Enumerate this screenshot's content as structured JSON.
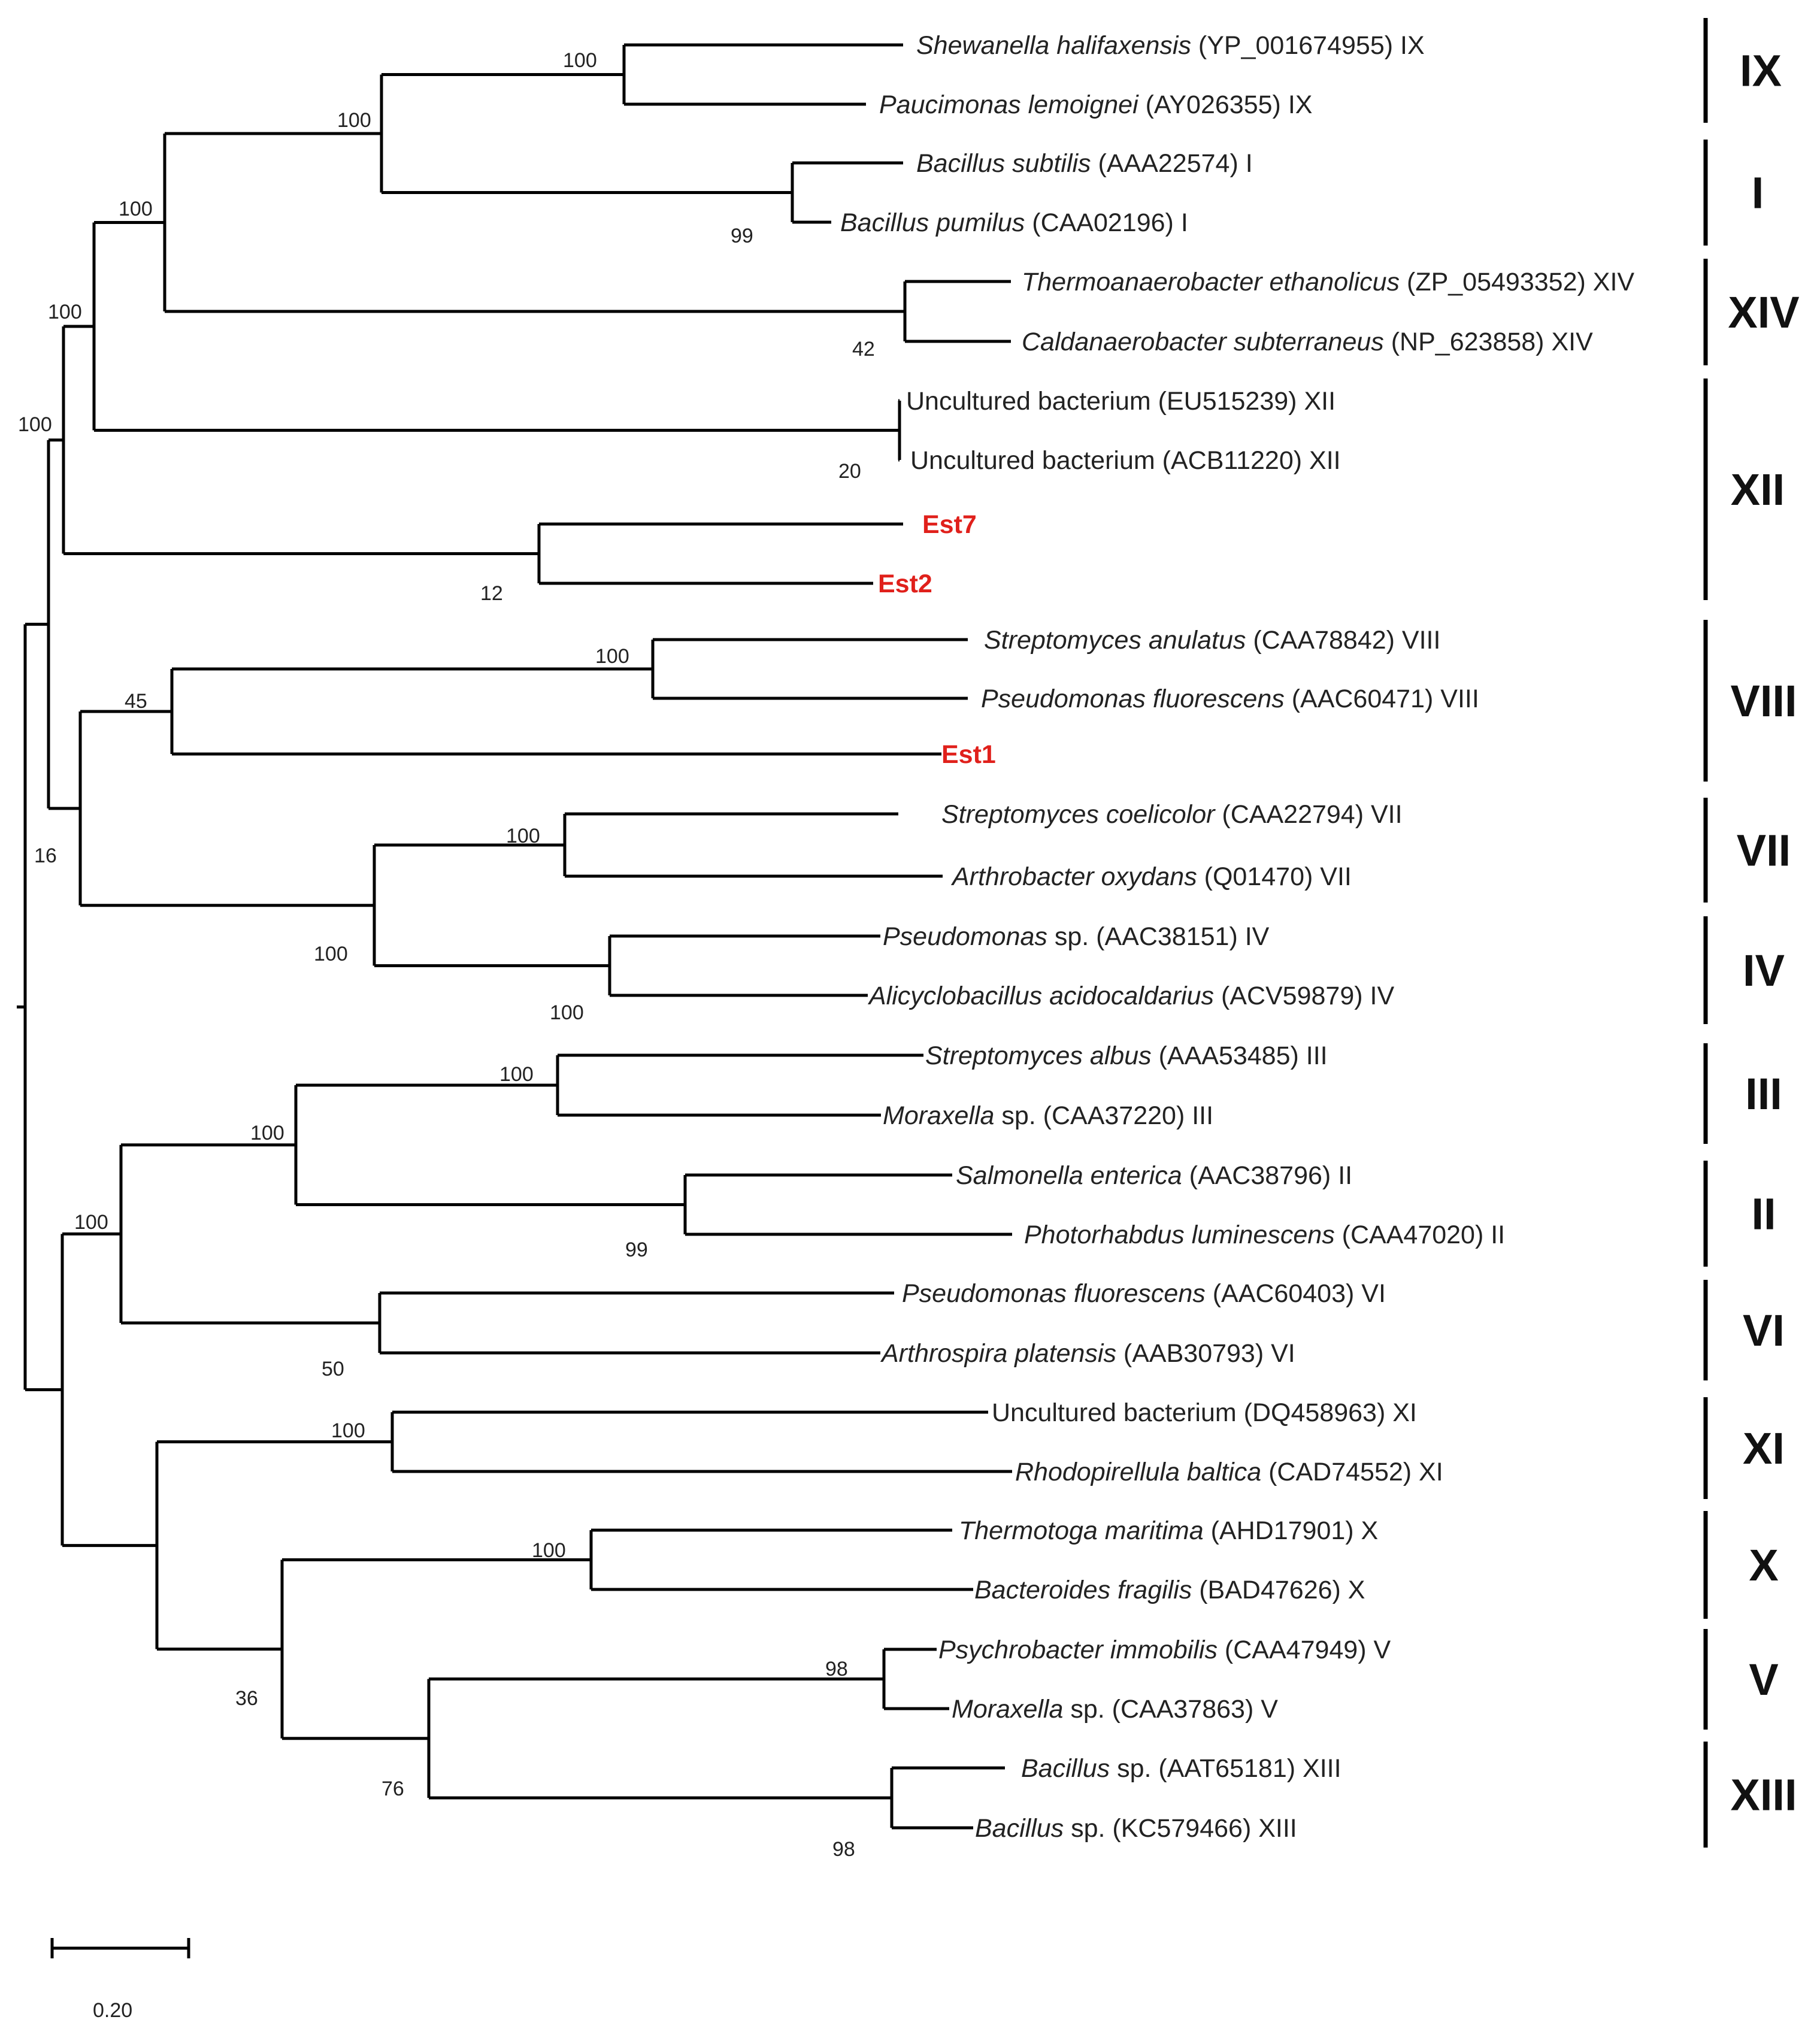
{
  "leaves": [
    {
      "genus": "Shewanella halifaxensis",
      "rest": " (YP_001674955) IX",
      "red": false
    },
    {
      "genus": "Paucimonas lemoignei",
      "rest": " (AY026355) IX",
      "red": false
    },
    {
      "genus": "Bacillus subtilis",
      "rest": " (AAA22574) I",
      "red": false
    },
    {
      "genus": "Bacillus pumilus",
      "rest": " (CAA02196) I",
      "red": false
    },
    {
      "genus": "Thermoanaerobacter ethanolicus",
      "rest": " (ZP_05493352) XIV",
      "red": false
    },
    {
      "genus": "Caldanaerobacter subterraneus",
      "rest": " (NP_623858) XIV",
      "red": false
    },
    {
      "genus": "",
      "rest": "Uncultured bacterium (EU515239) XII",
      "red": false
    },
    {
      "genus": "",
      "rest": "Uncultured bacterium (ACB11220) XII",
      "red": false
    },
    {
      "genus": "",
      "rest": "Est7",
      "red": true
    },
    {
      "genus": "",
      "rest": "Est2",
      "red": true
    },
    {
      "genus": "Streptomyces anulatus",
      "rest": " (CAA78842) VIII",
      "red": false
    },
    {
      "genus": "Pseudomonas fluorescens",
      "rest": " (AAC60471) VIII",
      "red": false
    },
    {
      "genus": "",
      "rest": "Est1",
      "red": true
    },
    {
      "genus": "Streptomyces coelicolor",
      "rest": " (CAA22794) VII",
      "red": false
    },
    {
      "genus": "Arthrobacter oxydans",
      "rest": " (Q01470) VII",
      "red": false
    },
    {
      "genus": "Pseudomonas",
      "rest": " sp. (AAC38151) IV",
      "red": false
    },
    {
      "genus": "Alicyclobacillus acidocaldarius",
      "rest": " (ACV59879) IV",
      "red": false
    },
    {
      "genus": "Streptomyces albus",
      "rest": " (AAA53485) III",
      "red": false
    },
    {
      "genus": "Moraxella",
      "rest": " sp. (CAA37220) III",
      "red": false
    },
    {
      "genus": "Salmonella enterica",
      "rest": " (AAC38796) II",
      "red": false
    },
    {
      "genus": "Photorhabdus luminescens",
      "rest": " (CAA47020) II",
      "red": false
    },
    {
      "genus": "Pseudomonas fluorescens",
      "rest": " (AAC60403) VI",
      "red": false
    },
    {
      "genus": "Arthrospira platensis",
      "rest": " (AAB30793) VI",
      "red": false
    },
    {
      "genus": "",
      "rest": "Uncultured bacterium (DQ458963) XI",
      "red": false
    },
    {
      "genus": "Rhodopirellula baltica",
      "rest": " (CAD74552) XI",
      "red": false
    },
    {
      "genus": "Thermotoga maritima",
      "rest": " (AHD17901) X",
      "red": false
    },
    {
      "genus": "Bacteroides fragilis",
      "rest": " (BAD47626) X",
      "red": false
    },
    {
      "genus": "Psychrobacter immobilis",
      "rest": " (CAA47949) V",
      "red": false
    },
    {
      "genus": "Moraxella",
      "rest": " sp. (CAA37863) V",
      "red": false
    },
    {
      "genus": "Bacillus",
      "rest": " sp. (AAT65181) XIII",
      "red": false
    },
    {
      "genus": "Bacillus",
      "rest": " sp. (KC579466) XIII",
      "red": false
    }
  ],
  "bootstrap": [
    "100",
    "99",
    "100",
    "42",
    "100",
    "20",
    "100",
    "12",
    "100",
    "100",
    "45",
    "100",
    "100",
    "100",
    "16",
    "100",
    "99",
    "100",
    "50",
    "100",
    "100",
    "100",
    "98",
    "98",
    "76",
    "36"
  ],
  "families": [
    "IX",
    "I",
    "XIV",
    "XII",
    "VIII",
    "VII",
    "IV",
    "III",
    "II",
    "VI",
    "XI",
    "X",
    "V",
    "XIII"
  ],
  "scale": {
    "label": "0.20"
  },
  "colors": {
    "highlight": "#e0201b"
  }
}
